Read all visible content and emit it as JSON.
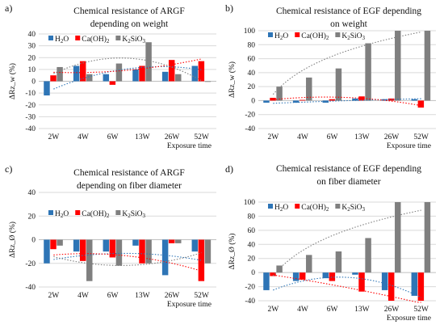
{
  "chart_data": [
    {
      "type": "bar",
      "panel_label": "a)",
      "title_lines": [
        "Chemical resistance of ARGF",
        "depending on weight"
      ],
      "categories": [
        "2W",
        "4W",
        "6W",
        "13W",
        "26W",
        "52W"
      ],
      "xlabel": "Exposure time",
      "ylabel": "ΔRz_w (%)",
      "ylim": [
        -40,
        40
      ],
      "yticks": [
        -40,
        -30,
        -20,
        -10,
        0,
        10,
        20,
        30,
        40
      ],
      "grid": true,
      "legend_placement": "top",
      "series": [
        {
          "name": "H2O",
          "label_main": "H",
          "label_sub": "2",
          "label_rest": "O",
          "color": "#2e75b6",
          "values": [
            -12,
            13,
            6,
            10,
            8,
            13
          ],
          "trend": "poly"
        },
        {
          "name": "Ca(OH)2",
          "label_main": "Ca(OH)",
          "label_sub": "2",
          "label_rest": "",
          "color": "#ff0000",
          "values": [
            5,
            17,
            -3,
            13,
            18,
            17
          ],
          "trend": "poly"
        },
        {
          "name": "K2SiO3",
          "label_main": "K",
          "label_sub": "2",
          "label_rest": "SiO",
          "label_sub2": "3",
          "color": "#7f7f7f",
          "values": [
            12,
            6,
            15,
            33,
            6,
            0
          ],
          "trend": "poly"
        }
      ]
    },
    {
      "type": "bar",
      "panel_label": "b)",
      "title_lines": [
        "Chemical resistance of EGF depending",
        "on weight"
      ],
      "categories": [
        "2W",
        "4W",
        "6W",
        "13W",
        "26W",
        "52W"
      ],
      "xlabel": "Exposure time",
      "ylabel": "ΔRz_w (%)",
      "ylim": [
        -40,
        100
      ],
      "yticks": [
        -40,
        -20,
        0,
        20,
        40,
        60,
        80,
        100
      ],
      "grid": true,
      "legend_placement": "top",
      "series": [
        {
          "name": "H2O",
          "label_main": "H",
          "label_sub": "2",
          "label_rest": "O",
          "color": "#2e75b6",
          "values": [
            -3,
            -3,
            -3,
            3,
            2,
            2
          ],
          "trend": "poly"
        },
        {
          "name": "Ca(OH)2",
          "label_main": "Ca(OH)",
          "label_sub": "2",
          "label_rest": "",
          "color": "#ff0000",
          "values": [
            4,
            1,
            2,
            6,
            3,
            -10
          ],
          "trend": "poly"
        },
        {
          "name": "K2SiO3",
          "label_main": "K",
          "label_sub": "2",
          "label_rest": "SiO",
          "label_sub2": "3",
          "color": "#7f7f7f",
          "values": [
            20,
            33,
            46,
            82,
            100,
            100
          ],
          "trend": "log"
        }
      ]
    },
    {
      "type": "bar",
      "panel_label": "c)",
      "title_lines": [
        "Chemical resistance of ARGF",
        "depending on fiber diameter"
      ],
      "categories": [
        "2W",
        "4W",
        "6W",
        "13W",
        "26W",
        "52W"
      ],
      "xlabel": "Exposure time",
      "ylabel": "ΔRz_Ø (%)",
      "ylim": [
        -40,
        40
      ],
      "yticks": [
        -40,
        -20,
        0,
        20,
        40
      ],
      "grid": true,
      "legend_placement": "top",
      "series": [
        {
          "name": "H2O",
          "label_main": "H",
          "label_sub": "2",
          "label_rest": "O",
          "color": "#2e75b6",
          "values": [
            -20,
            -10,
            -10,
            -5,
            -30,
            -10
          ],
          "trend": "poly"
        },
        {
          "name": "Ca(OH)2",
          "label_main": "Ca(OH)",
          "label_sub": "2",
          "label_rest": "",
          "color": "#ff0000",
          "values": [
            -8,
            -18,
            -15,
            -20,
            -3,
            -35
          ],
          "trend": "poly"
        },
        {
          "name": "K2SiO3",
          "label_main": "K",
          "label_sub": "2",
          "label_rest": "SiO",
          "label_sub2": "3",
          "color": "#7f7f7f",
          "values": [
            -5,
            -35,
            -22,
            -20,
            -3,
            -20
          ],
          "trend": "poly"
        }
      ]
    },
    {
      "type": "bar",
      "panel_label": "d)",
      "title_lines": [
        "Chemical resistance of EGF depending",
        "on fiber diameter"
      ],
      "categories": [
        "2W",
        "4W",
        "6W",
        "13W",
        "26W",
        "52W"
      ],
      "xlabel": "Exposure time",
      "ylabel": "ΔRz_Ø (%)",
      "ylim": [
        -40,
        100
      ],
      "yticks": [
        -40,
        -20,
        0,
        20,
        40,
        60,
        80,
        100
      ],
      "grid": true,
      "legend_placement": "top",
      "series": [
        {
          "name": "H2O",
          "label_main": "H",
          "label_sub": "2",
          "label_rest": "O",
          "color": "#2e75b6",
          "values": [
            -25,
            -12,
            -8,
            -3,
            -25,
            -33
          ],
          "trend": "poly"
        },
        {
          "name": "Ca(OH)2",
          "label_main": "Ca(OH)",
          "label_sub": "2",
          "label_rest": "",
          "color": "#ff0000",
          "values": [
            -5,
            -10,
            -12,
            -27,
            -40,
            -40
          ],
          "trend": "poly"
        },
        {
          "name": "K2SiO3",
          "label_main": "K",
          "label_sub": "2",
          "label_rest": "SiO",
          "label_sub2": "3",
          "color": "#7f7f7f",
          "values": [
            10,
            25,
            30,
            49,
            100,
            100
          ],
          "trend": "log"
        }
      ]
    }
  ]
}
